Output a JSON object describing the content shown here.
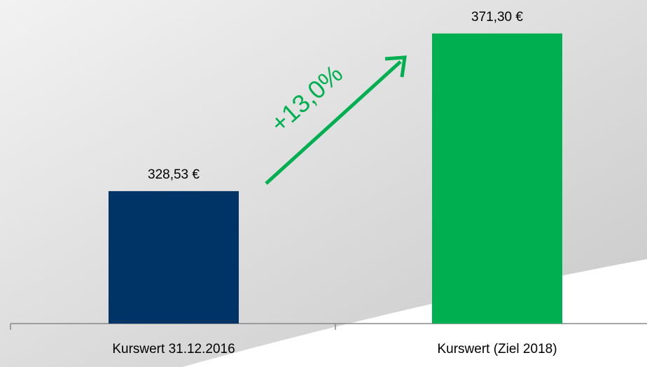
{
  "chart_data": {
    "type": "bar",
    "categories": [
      "Kurswert 31.12.2016",
      "Kurswert (Ziel 2018)"
    ],
    "values": [
      328.53,
      371.3
    ],
    "value_labels": [
      "328,53 €",
      "371,30 €"
    ],
    "colors": [
      "#003366",
      "#00b050"
    ],
    "ylim": [
      292.6,
      380
    ],
    "annotation": "+13,0%"
  }
}
